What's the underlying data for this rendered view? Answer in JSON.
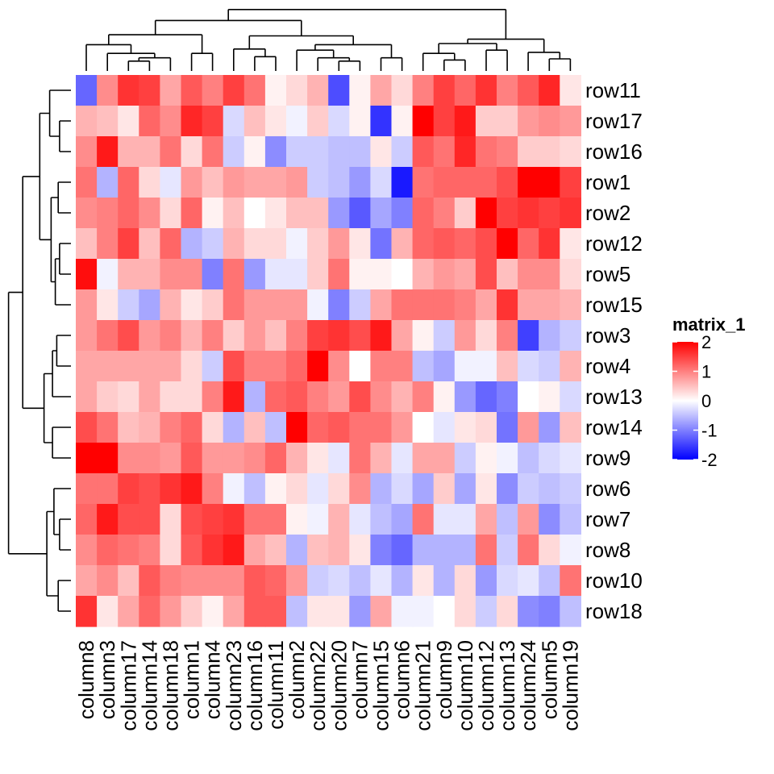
{
  "chart_data": {
    "type": "heatmap",
    "title": "",
    "columns": [
      "column8",
      "column3",
      "column17",
      "column14",
      "column18",
      "column1",
      "column4",
      "column23",
      "column16",
      "column11",
      "column2",
      "column22",
      "column20",
      "column7",
      "column15",
      "column6",
      "column21",
      "column9",
      "column10",
      "column12",
      "column13",
      "column24",
      "column5",
      "column19"
    ],
    "rows": [
      "row11",
      "row17",
      "row16",
      "row1",
      "row2",
      "row12",
      "row5",
      "row15",
      "row3",
      "row4",
      "row13",
      "row14",
      "row9",
      "row6",
      "row7",
      "row8",
      "row10",
      "row18"
    ],
    "values": [
      [
        -1.2,
        0.9,
        1.6,
        1.5,
        0.7,
        1.3,
        1.0,
        1.5,
        1.1,
        0.1,
        0.3,
        0.6,
        -1.4,
        0.1,
        0.7,
        0.3,
        1.0,
        1.5,
        1.2,
        1.6,
        1.0,
        1.3,
        1.7,
        0.2
      ],
      [
        0.6,
        0.5,
        0.2,
        1.2,
        0.9,
        1.7,
        1.5,
        -0.3,
        0.5,
        0.2,
        -0.1,
        0.4,
        -0.3,
        0.1,
        -1.6,
        0.1,
        2.1,
        1.5,
        1.8,
        0.4,
        0.4,
        0.8,
        0.9,
        0.8
      ],
      [
        0.9,
        1.8,
        0.6,
        0.6,
        1.1,
        0.3,
        1.1,
        -0.4,
        0.1,
        -0.9,
        -0.4,
        -0.4,
        -0.5,
        -0.5,
        0.2,
        -0.4,
        1.3,
        1.1,
        1.7,
        1.1,
        1.0,
        0.4,
        0.4,
        0.3
      ],
      [
        1.1,
        -0.6,
        1.2,
        0.3,
        -0.2,
        0.8,
        0.5,
        0.8,
        0.7,
        0.7,
        0.8,
        -0.4,
        -0.5,
        -0.8,
        -0.3,
        -1.8,
        1.1,
        1.2,
        1.2,
        1.2,
        1.4,
        2.0,
        2.0,
        1.5
      ],
      [
        0.9,
        1.0,
        1.2,
        0.9,
        0.3,
        1.2,
        0.1,
        0.5,
        0.0,
        0.2,
        0.5,
        0.5,
        -0.8,
        -1.3,
        -0.7,
        -1.0,
        1.2,
        1.0,
        0.4,
        2.0,
        1.5,
        1.6,
        1.5,
        1.6
      ],
      [
        0.5,
        1.0,
        1.5,
        0.5,
        1.2,
        -0.6,
        -0.4,
        0.6,
        0.3,
        0.3,
        -0.1,
        0.4,
        0.8,
        0.2,
        -1.1,
        0.6,
        1.2,
        1.3,
        1.2,
        1.4,
        2.1,
        1.2,
        1.6,
        0.2
      ],
      [
        1.9,
        -0.1,
        0.6,
        0.6,
        0.9,
        0.9,
        -1.0,
        1.1,
        -0.8,
        -0.2,
        -0.2,
        0.4,
        1.1,
        0.1,
        0.1,
        0.0,
        0.6,
        0.8,
        0.7,
        1.4,
        0.5,
        0.9,
        0.9,
        0.3
      ],
      [
        0.8,
        0.2,
        -0.4,
        -0.7,
        0.6,
        0.2,
        0.4,
        1.1,
        0.8,
        0.8,
        0.8,
        -0.1,
        -1.0,
        -0.4,
        0.7,
        1.1,
        1.1,
        1.1,
        1.0,
        0.7,
        1.6,
        0.7,
        0.7,
        0.6
      ],
      [
        0.8,
        1.1,
        1.4,
        0.8,
        1.0,
        0.6,
        1.0,
        0.4,
        0.8,
        0.5,
        1.0,
        1.5,
        1.6,
        1.4,
        1.8,
        0.7,
        0.1,
        -0.4,
        0.8,
        0.3,
        1.0,
        -1.5,
        -0.6,
        -0.4
      ],
      [
        0.7,
        0.7,
        0.7,
        0.7,
        0.7,
        0.3,
        -0.4,
        1.4,
        1.0,
        1.0,
        1.2,
        2.0,
        0.9,
        0.0,
        1.0,
        1.0,
        -0.5,
        -0.7,
        -0.1,
        -0.1,
        0.5,
        -0.3,
        -0.4,
        0.6
      ],
      [
        0.7,
        0.4,
        0.3,
        0.7,
        0.3,
        0.3,
        1.0,
        1.8,
        -0.6,
        1.2,
        1.3,
        1.0,
        0.8,
        1.4,
        0.9,
        0.6,
        1.0,
        0.1,
        -0.8,
        -1.2,
        -1.0,
        0.0,
        0.1,
        -0.3
      ],
      [
        1.4,
        1.1,
        0.5,
        0.6,
        1.0,
        1.2,
        0.3,
        -0.6,
        0.5,
        -0.5,
        2.1,
        1.2,
        1.3,
        1.1,
        1.1,
        0.8,
        0.0,
        -0.2,
        0.2,
        0.3,
        -1.1,
        0.8,
        -0.8,
        0.5
      ],
      [
        2.1,
        2.2,
        0.9,
        0.9,
        0.8,
        1.3,
        0.8,
        0.8,
        0.9,
        1.2,
        0.6,
        0.2,
        -0.2,
        1.1,
        0.6,
        -0.2,
        0.7,
        0.7,
        -0.4,
        0.1,
        -0.1,
        -0.5,
        -0.3,
        -0.2
      ],
      [
        1.1,
        1.1,
        1.5,
        1.4,
        1.6,
        1.8,
        1.0,
        -0.1,
        -0.5,
        0.1,
        0.3,
        -0.2,
        0.3,
        0.9,
        -0.6,
        -0.3,
        -0.7,
        0.4,
        -0.7,
        0.2,
        -0.9,
        -0.4,
        -0.5,
        -0.4
      ],
      [
        1.2,
        1.8,
        1.4,
        1.4,
        0.3,
        1.4,
        1.5,
        1.6,
        1.1,
        1.1,
        0.1,
        -0.1,
        0.6,
        -0.2,
        -0.5,
        -0.7,
        1.1,
        -0.2,
        -0.2,
        0.7,
        -0.5,
        0.8,
        -0.9,
        -0.5
      ],
      [
        0.9,
        1.2,
        1.1,
        1.0,
        0.3,
        1.3,
        1.6,
        1.8,
        0.7,
        0.5,
        -0.6,
        0.5,
        0.6,
        0.2,
        -1.0,
        -1.2,
        -0.6,
        -0.6,
        -0.6,
        1.1,
        -0.4,
        1.1,
        0.3,
        -0.1
      ],
      [
        0.7,
        0.9,
        0.5,
        1.3,
        1.0,
        0.9,
        0.9,
        0.9,
        1.3,
        1.2,
        0.8,
        -0.4,
        -0.3,
        -0.5,
        -0.2,
        -0.6,
        0.2,
        -0.6,
        0.3,
        -0.8,
        -0.3,
        -0.2,
        -0.5,
        1.1
      ],
      [
        1.6,
        0.2,
        0.7,
        1.2,
        0.8,
        0.4,
        0.1,
        0.7,
        1.3,
        1.3,
        -0.5,
        0.2,
        0.2,
        -0.8,
        0.7,
        -0.1,
        -0.1,
        0.0,
        0.3,
        -0.4,
        0.3,
        -0.9,
        -1.0,
        -0.5
      ]
    ],
    "legend": {
      "title": "matrix_1",
      "ticks": [
        2,
        1,
        0,
        -1,
        -2
      ],
      "range": [
        -2,
        2
      ],
      "colors": {
        "low": "#0000ff",
        "mid": "#ffffff",
        "high": "#ff0000"
      },
      "placement": "right"
    },
    "row_dendrogram": {
      "order_position": "left"
    },
    "column_dendrogram": {
      "order_position": "top"
    }
  }
}
